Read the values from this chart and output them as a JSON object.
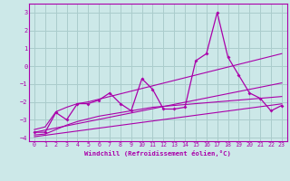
{
  "xlabel": "Windchill (Refroidissement éolien,°C)",
  "background_color": "#cce8e8",
  "grid_color": "#aacccc",
  "line_color": "#aa00aa",
  "xlim": [
    -0.5,
    23.5
  ],
  "ylim": [
    -4.2,
    3.5
  ],
  "yticks": [
    -4,
    -3,
    -2,
    -1,
    0,
    1,
    2,
    3
  ],
  "xticks": [
    0,
    1,
    2,
    3,
    4,
    5,
    6,
    7,
    8,
    9,
    10,
    11,
    12,
    13,
    14,
    15,
    16,
    17,
    18,
    19,
    20,
    21,
    22,
    23
  ],
  "main_data": [
    -3.7,
    -3.7,
    -2.6,
    -3.0,
    -2.1,
    -2.1,
    -1.9,
    -1.5,
    -2.1,
    -2.5,
    -0.7,
    -1.3,
    -2.4,
    -2.4,
    -2.3,
    0.3,
    0.7,
    3.0,
    0.5,
    -0.5,
    -1.5,
    -1.8,
    -2.5,
    -2.2
  ],
  "upper_envelope": [
    -3.55,
    -3.4,
    -2.55,
    -2.3,
    -2.1,
    -2.0,
    -1.85,
    -1.7,
    -1.55,
    -1.4,
    -1.25,
    -1.1,
    -0.95,
    -0.8,
    -0.65,
    -0.5,
    -0.35,
    -0.2,
    -0.05,
    0.1,
    0.25,
    0.4,
    0.55,
    0.7
  ],
  "lower_envelope": [
    -3.85,
    -3.8,
    -3.55,
    -3.3,
    -3.1,
    -2.95,
    -2.8,
    -2.7,
    -2.6,
    -2.5,
    -2.4,
    -2.3,
    -2.25,
    -2.2,
    -2.15,
    -2.1,
    -2.05,
    -2.0,
    -1.95,
    -1.9,
    -1.85,
    -1.8,
    -1.75,
    -1.7
  ],
  "trend_line_upper": [
    -3.7,
    -3.58,
    -3.46,
    -3.34,
    -3.22,
    -3.1,
    -2.98,
    -2.86,
    -2.74,
    -2.62,
    -2.5,
    -2.38,
    -2.26,
    -2.14,
    -2.02,
    -1.9,
    -1.78,
    -1.66,
    -1.54,
    -1.42,
    -1.3,
    -1.18,
    -1.06,
    -0.94
  ],
  "trend_line_lower": [
    -3.95,
    -3.87,
    -3.79,
    -3.71,
    -3.63,
    -3.55,
    -3.47,
    -3.39,
    -3.31,
    -3.23,
    -3.15,
    -3.07,
    -2.99,
    -2.91,
    -2.83,
    -2.75,
    -2.67,
    -2.59,
    -2.51,
    -2.43,
    -2.35,
    -2.27,
    -2.19,
    -2.11
  ]
}
